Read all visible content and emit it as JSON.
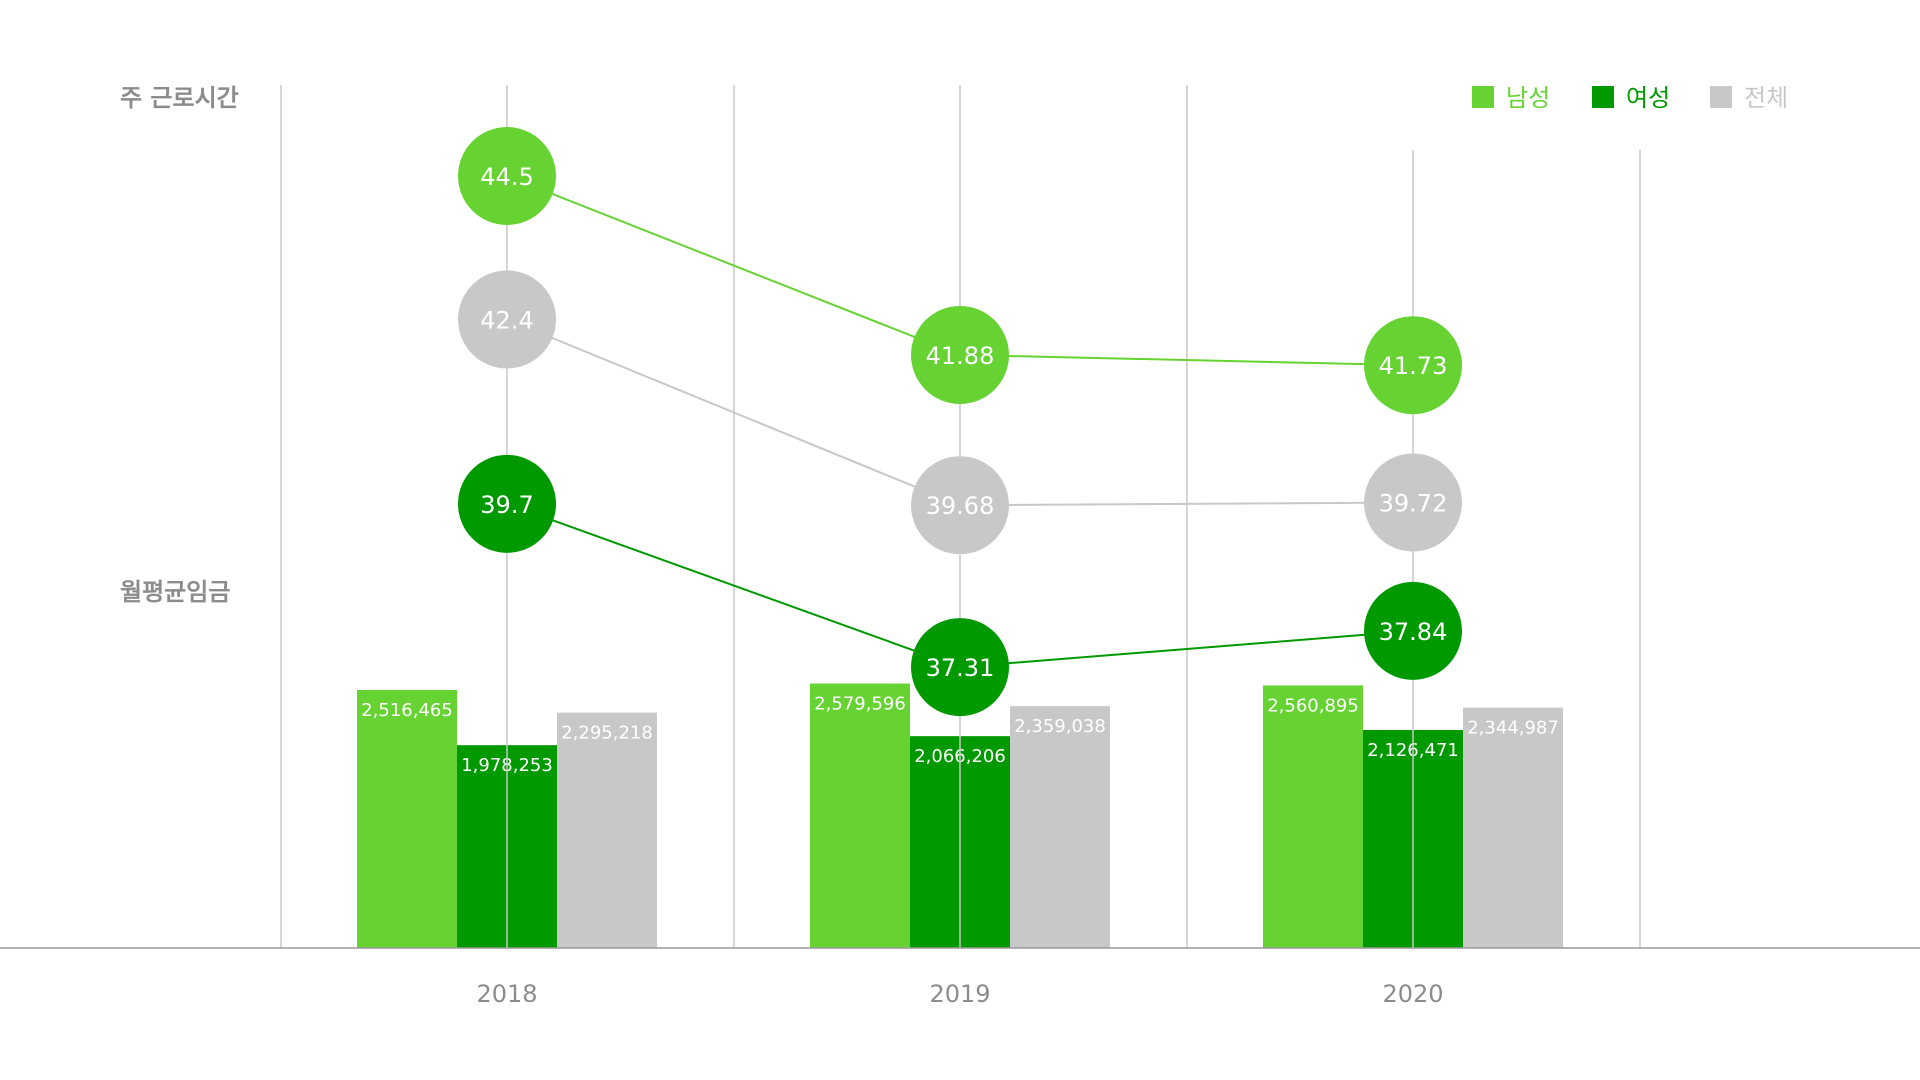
{
  "chart_data": {
    "type": "combo",
    "categories": [
      "2018",
      "2019",
      "2020"
    ],
    "labels": {
      "line_axis": "주 근로시간",
      "bar_axis": "월평균임금"
    },
    "legend": {
      "position": "top-right",
      "entries": [
        {
          "key": "male",
          "label": "남성",
          "color": "#66d333"
        },
        {
          "key": "female",
          "label": "여성",
          "color": "#009900"
        },
        {
          "key": "total",
          "label": "전체",
          "color": "#c8c8c8"
        }
      ]
    },
    "line_series": [
      {
        "key": "male",
        "values": [
          44.5,
          41.88,
          41.73
        ],
        "labels": [
          "44.5",
          "41.88",
          "41.73"
        ],
        "color": "#66d333"
      },
      {
        "key": "total",
        "values": [
          42.4,
          39.68,
          39.72
        ],
        "labels": [
          "42.4",
          "39.68",
          "39.72"
        ],
        "color": "#c8c8c8"
      },
      {
        "key": "female",
        "values": [
          39.7,
          37.31,
          37.84
        ],
        "labels": [
          "39.7",
          "37.31",
          "37.84"
        ],
        "color": "#009900"
      }
    ],
    "bar_series": [
      {
        "key": "male",
        "values": [
          2516465,
          2579596,
          2560895
        ],
        "labels": [
          "2,516,465",
          "2,579,596",
          "2,560,895"
        ],
        "color": "#66d333"
      },
      {
        "key": "female",
        "values": [
          1978253,
          2066206,
          2126471
        ],
        "labels": [
          "1,978,253",
          "2,066,206",
          "2,126,471"
        ],
        "color": "#009900"
      },
      {
        "key": "total",
        "values": [
          2295218,
          2359038,
          2344987
        ],
        "labels": [
          "2,295,218",
          "2,359,038",
          "2,344,987"
        ],
        "color": "#c8c8c8"
      }
    ],
    "grid": true,
    "line_ylim": [
      36,
      46
    ],
    "bar_ylim": [
      0,
      3000000
    ]
  }
}
